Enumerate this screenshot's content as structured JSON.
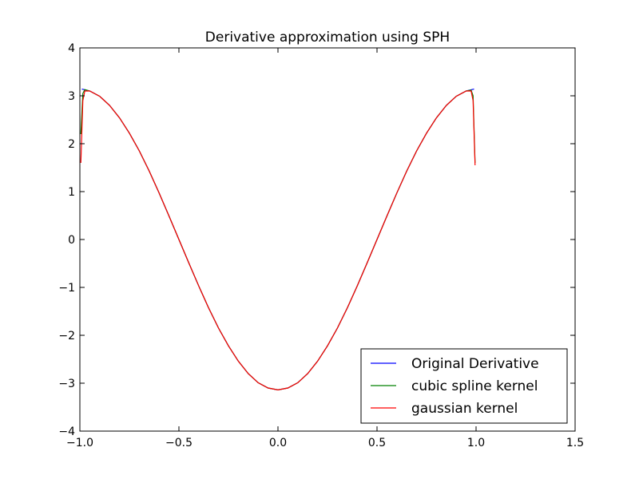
{
  "chart_data": {
    "type": "line",
    "title": "Derivative approximation using SPH",
    "xlabel": "",
    "ylabel": "",
    "xlim": [
      -1.0,
      1.5
    ],
    "ylim": [
      -4,
      4
    ],
    "x_ticks": [
      -1.0,
      -0.5,
      0.0,
      0.5,
      1.0,
      1.5
    ],
    "x_tick_labels": [
      "−1.0",
      "−0.5",
      "0.0",
      "0.5",
      "1.0",
      "1.5"
    ],
    "y_ticks": [
      -4,
      -3,
      -2,
      -1,
      0,
      1,
      2,
      3,
      4
    ],
    "y_tick_labels": [
      "−4",
      "−3",
      "−2",
      "−1",
      "0",
      "1",
      "2",
      "3",
      "4"
    ],
    "grid": false,
    "legend_position": "lower-right",
    "series": [
      {
        "name": "Original Derivative",
        "color": "#0000ff",
        "x": [
          -0.99,
          -0.95,
          -0.9,
          -0.85,
          -0.8,
          -0.75,
          -0.7,
          -0.65,
          -0.6,
          -0.55,
          -0.5,
          -0.45,
          -0.4,
          -0.35,
          -0.3,
          -0.25,
          -0.2,
          -0.15,
          -0.1,
          -0.05,
          0.0,
          0.05,
          0.1,
          0.15,
          0.2,
          0.25,
          0.3,
          0.35,
          0.4,
          0.45,
          0.5,
          0.55,
          0.6,
          0.65,
          0.7,
          0.75,
          0.8,
          0.85,
          0.9,
          0.95,
          0.99
        ],
        "y": [
          3.14,
          3.1,
          2.99,
          2.8,
          2.54,
          2.22,
          1.85,
          1.43,
          0.97,
          0.49,
          0.0,
          -0.49,
          -0.97,
          -1.43,
          -1.85,
          -2.22,
          -2.54,
          -2.8,
          -2.99,
          -3.1,
          -3.14,
          -3.1,
          -2.99,
          -2.8,
          -2.54,
          -2.22,
          -1.85,
          -1.43,
          -0.97,
          -0.49,
          0.0,
          0.49,
          0.97,
          1.43,
          1.85,
          2.22,
          2.54,
          2.8,
          2.99,
          3.1,
          3.14
        ]
      },
      {
        "name": "cubic spline kernel",
        "color": "#008000",
        "x": [
          -0.995,
          -0.985,
          -0.975,
          -0.95,
          -0.9,
          -0.85,
          -0.8,
          -0.75,
          -0.7,
          -0.65,
          -0.6,
          -0.55,
          -0.5,
          -0.45,
          -0.4,
          -0.35,
          -0.3,
          -0.25,
          -0.2,
          -0.15,
          -0.1,
          -0.05,
          0.0,
          0.05,
          0.1,
          0.15,
          0.2,
          0.25,
          0.3,
          0.35,
          0.4,
          0.45,
          0.5,
          0.55,
          0.6,
          0.65,
          0.7,
          0.75,
          0.8,
          0.85,
          0.9,
          0.95,
          0.975,
          0.985,
          0.995
        ],
        "y": [
          2.2,
          3.05,
          3.13,
          3.1,
          2.99,
          2.8,
          2.54,
          2.22,
          1.85,
          1.43,
          0.97,
          0.49,
          0.0,
          -0.49,
          -0.97,
          -1.43,
          -1.85,
          -2.22,
          -2.54,
          -2.8,
          -2.99,
          -3.1,
          -3.14,
          -3.1,
          -2.99,
          -2.8,
          -2.54,
          -2.22,
          -1.85,
          -1.43,
          -0.97,
          -0.49,
          0.0,
          0.49,
          0.97,
          1.43,
          1.85,
          2.22,
          2.54,
          2.8,
          2.99,
          3.1,
          3.12,
          3.0,
          1.6
        ]
      },
      {
        "name": "gaussian kernel",
        "color": "#ff0000",
        "x": [
          -0.995,
          -0.985,
          -0.975,
          -0.95,
          -0.9,
          -0.85,
          -0.8,
          -0.75,
          -0.7,
          -0.65,
          -0.6,
          -0.55,
          -0.5,
          -0.45,
          -0.4,
          -0.35,
          -0.3,
          -0.25,
          -0.2,
          -0.15,
          -0.1,
          -0.05,
          0.0,
          0.05,
          0.1,
          0.15,
          0.2,
          0.25,
          0.3,
          0.35,
          0.4,
          0.45,
          0.5,
          0.55,
          0.6,
          0.65,
          0.7,
          0.75,
          0.8,
          0.85,
          0.9,
          0.95,
          0.975,
          0.985,
          0.995
        ],
        "y": [
          1.6,
          2.9,
          3.1,
          3.1,
          2.99,
          2.8,
          2.54,
          2.22,
          1.85,
          1.43,
          0.97,
          0.49,
          0.0,
          -0.49,
          -0.97,
          -1.43,
          -1.85,
          -2.22,
          -2.54,
          -2.8,
          -2.99,
          -3.1,
          -3.14,
          -3.1,
          -2.99,
          -2.8,
          -2.54,
          -2.22,
          -1.85,
          -1.43,
          -0.97,
          -0.49,
          0.0,
          0.49,
          0.97,
          1.43,
          1.85,
          2.22,
          2.54,
          2.8,
          2.99,
          3.1,
          3.1,
          2.9,
          1.55
        ]
      }
    ]
  }
}
